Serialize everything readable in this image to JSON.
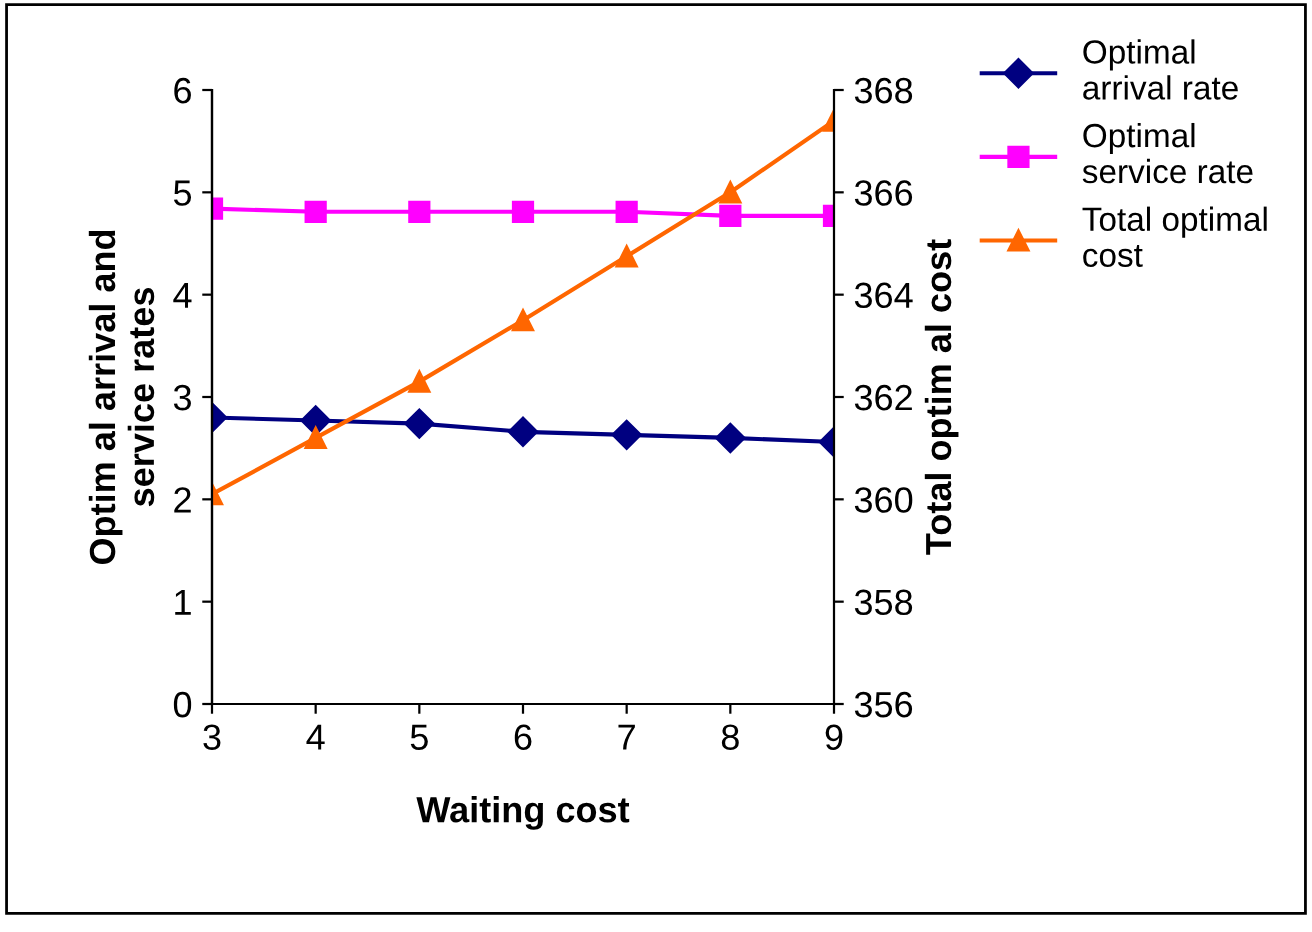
{
  "chart_data": {
    "type": "line",
    "xlabel": "Waiting cost",
    "ylabel": "Optim al arrival and\nservice rates",
    "y2label": "Total optim al cost",
    "x": [
      3,
      4,
      5,
      6,
      7,
      8,
      9
    ],
    "series": [
      {
        "name": "Optimal\narrival rate",
        "color": "#000080",
        "marker": "diamond",
        "values": [
          2.8,
          2.77,
          2.74,
          2.66,
          2.63,
          2.6,
          2.56
        ]
      },
      {
        "name": "Optimal\nservice rate",
        "color": "#ff00ff",
        "marker": "square",
        "values": [
          4.84,
          4.81,
          4.81,
          4.81,
          4.81,
          4.77,
          4.77
        ]
      },
      {
        "name": "Total optimal\ncost",
        "color": "#ff6600",
        "marker": "triangle",
        "axis": "y2",
        "values": [
          360.1,
          361.2,
          362.3,
          363.5,
          364.75,
          366.0,
          367.4
        ]
      }
    ],
    "xlim": [
      3,
      9
    ],
    "xticks": [
      3,
      4,
      5,
      6,
      7,
      8,
      9
    ],
    "ylim": [
      0,
      6
    ],
    "yticks": [
      0,
      1,
      2,
      3,
      4,
      5,
      6
    ],
    "y2lim": [
      356,
      368
    ],
    "y2ticks": [
      356,
      358,
      360,
      362,
      364,
      366,
      368
    ],
    "grid": false,
    "legend": "top right"
  }
}
